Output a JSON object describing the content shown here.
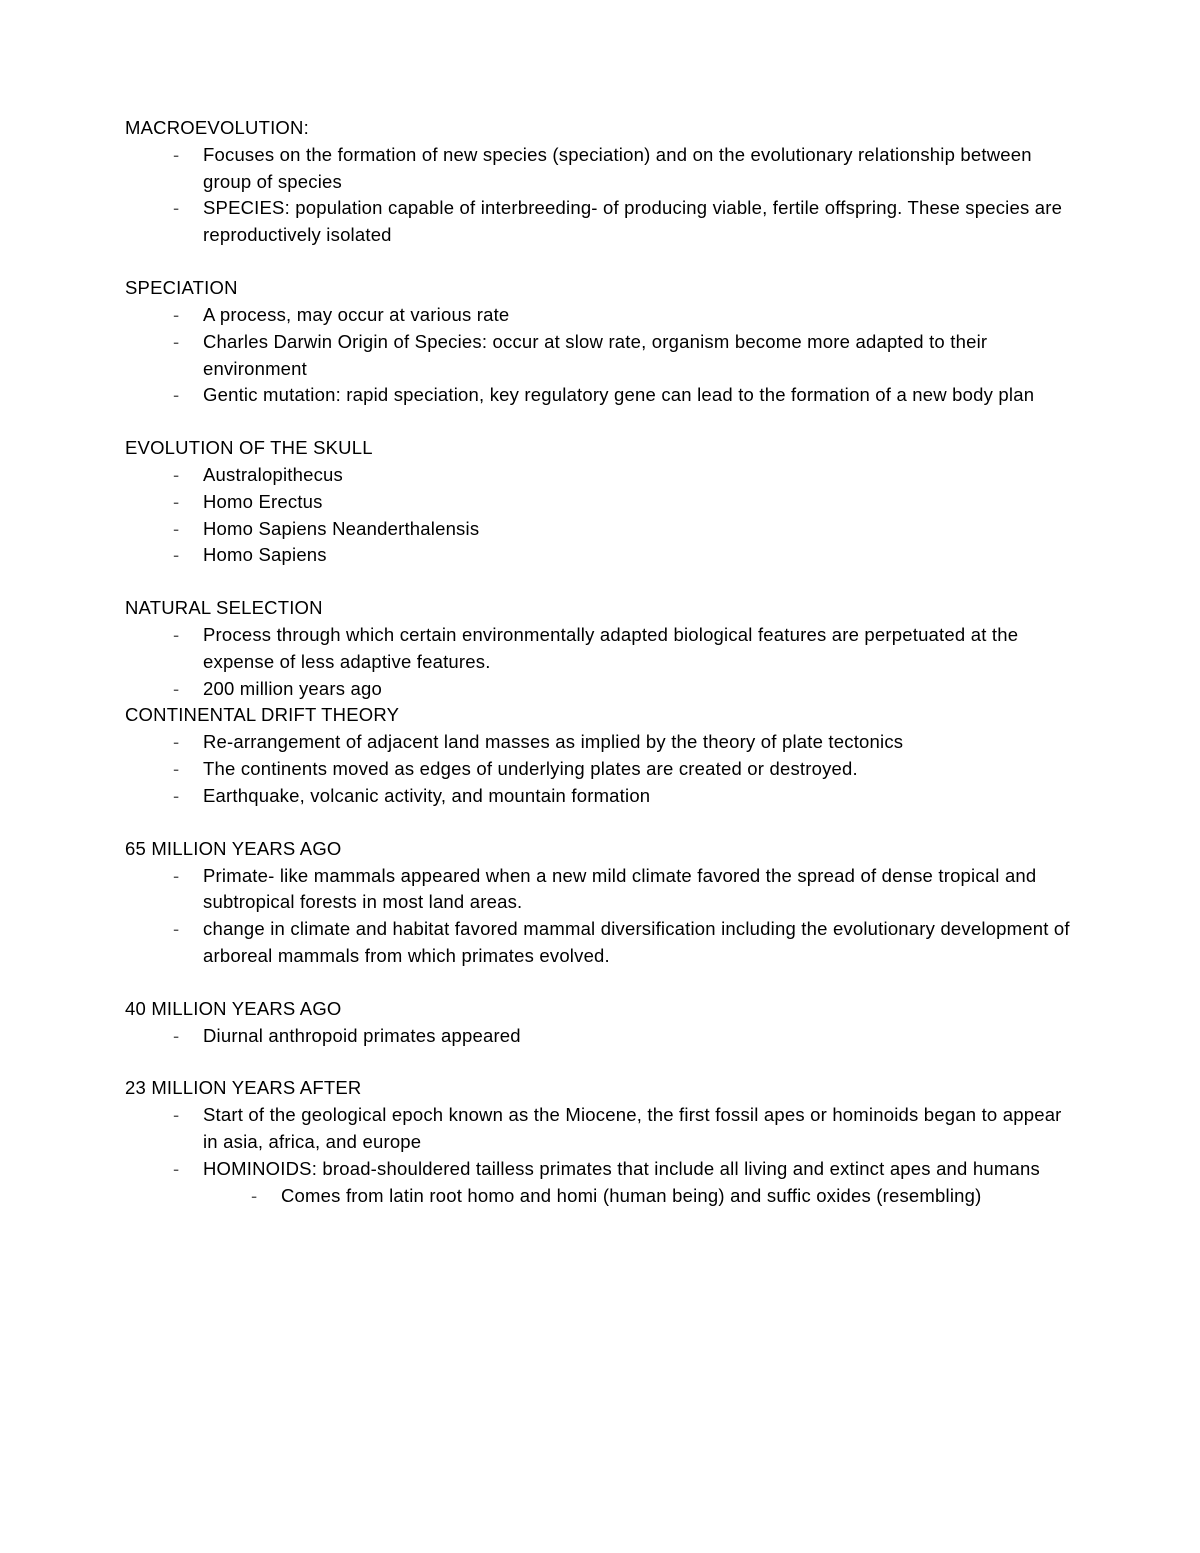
{
  "typography": {
    "font_family": "Arial",
    "font_size_pt": 14,
    "line_height": 1.45,
    "text_color": "#000000",
    "bullet_color": "#555555",
    "background_color": "#ffffff"
  },
  "sections": {
    "s0": {
      "heading": "MACROEVOLUTION:",
      "items": [
        "Focuses on the formation of new species (speciation) and on the evolutionary relationship between group of species",
        "SPECIES: population capable of interbreeding- of producing viable, fertile offspring. These species are reproductively isolated"
      ]
    },
    "s1": {
      "heading": "SPECIATION",
      "items": [
        "A process, may occur at various rate",
        "Charles Darwin Origin of Species: occur at slow rate, organism become more adapted to their environment",
        "Gentic mutation: rapid speciation, key regulatory gene can lead to the formation of a new body plan"
      ]
    },
    "s2": {
      "heading": "EVOLUTION OF THE SKULL",
      "items": [
        "Australopithecus",
        "Homo Erectus",
        "Homo Sapiens Neanderthalensis",
        "Homo Sapiens"
      ]
    },
    "s3": {
      "heading": "NATURAL SELECTION",
      "items": [
        "Process through which certain environmentally adapted biological features are perpetuated at the expense of less adaptive features.",
        "200 million years ago"
      ]
    },
    "s4": {
      "heading": "CONTINENTAL DRIFT THEORY",
      "items": [
        "Re-arrangement of adjacent land masses as implied by the theory of plate tectonics",
        "The continents moved as edges of underlying plates are created or destroyed.",
        "Earthquake, volcanic activity, and mountain formation"
      ]
    },
    "s5": {
      "heading": "65 MILLION YEARS AGO",
      "items": [
        " Primate- like mammals appeared when a new mild climate favored the spread of dense tropical and subtropical forests in most land areas.",
        "change in climate and habitat favored mammal diversification including the evolutionary development of arboreal mammals from which primates evolved."
      ]
    },
    "s6": {
      "heading": "40 MILLION YEARS AGO",
      "items": [
        "Diurnal anthropoid primates appeared"
      ]
    },
    "s7": {
      "heading": "23 MILLION YEARS AFTER",
      "items": [
        "Start of the geological epoch known as the Miocene, the first fossil apes or hominoids began to appear in asia, africa, and europe",
        "HOMINOIDS: broad-shouldered tailless primates that include all living and extinct apes and humans"
      ],
      "subitems_1": [
        "Comes from latin root homo and homi (human being) and suffic oxides (resembling)"
      ]
    }
  }
}
